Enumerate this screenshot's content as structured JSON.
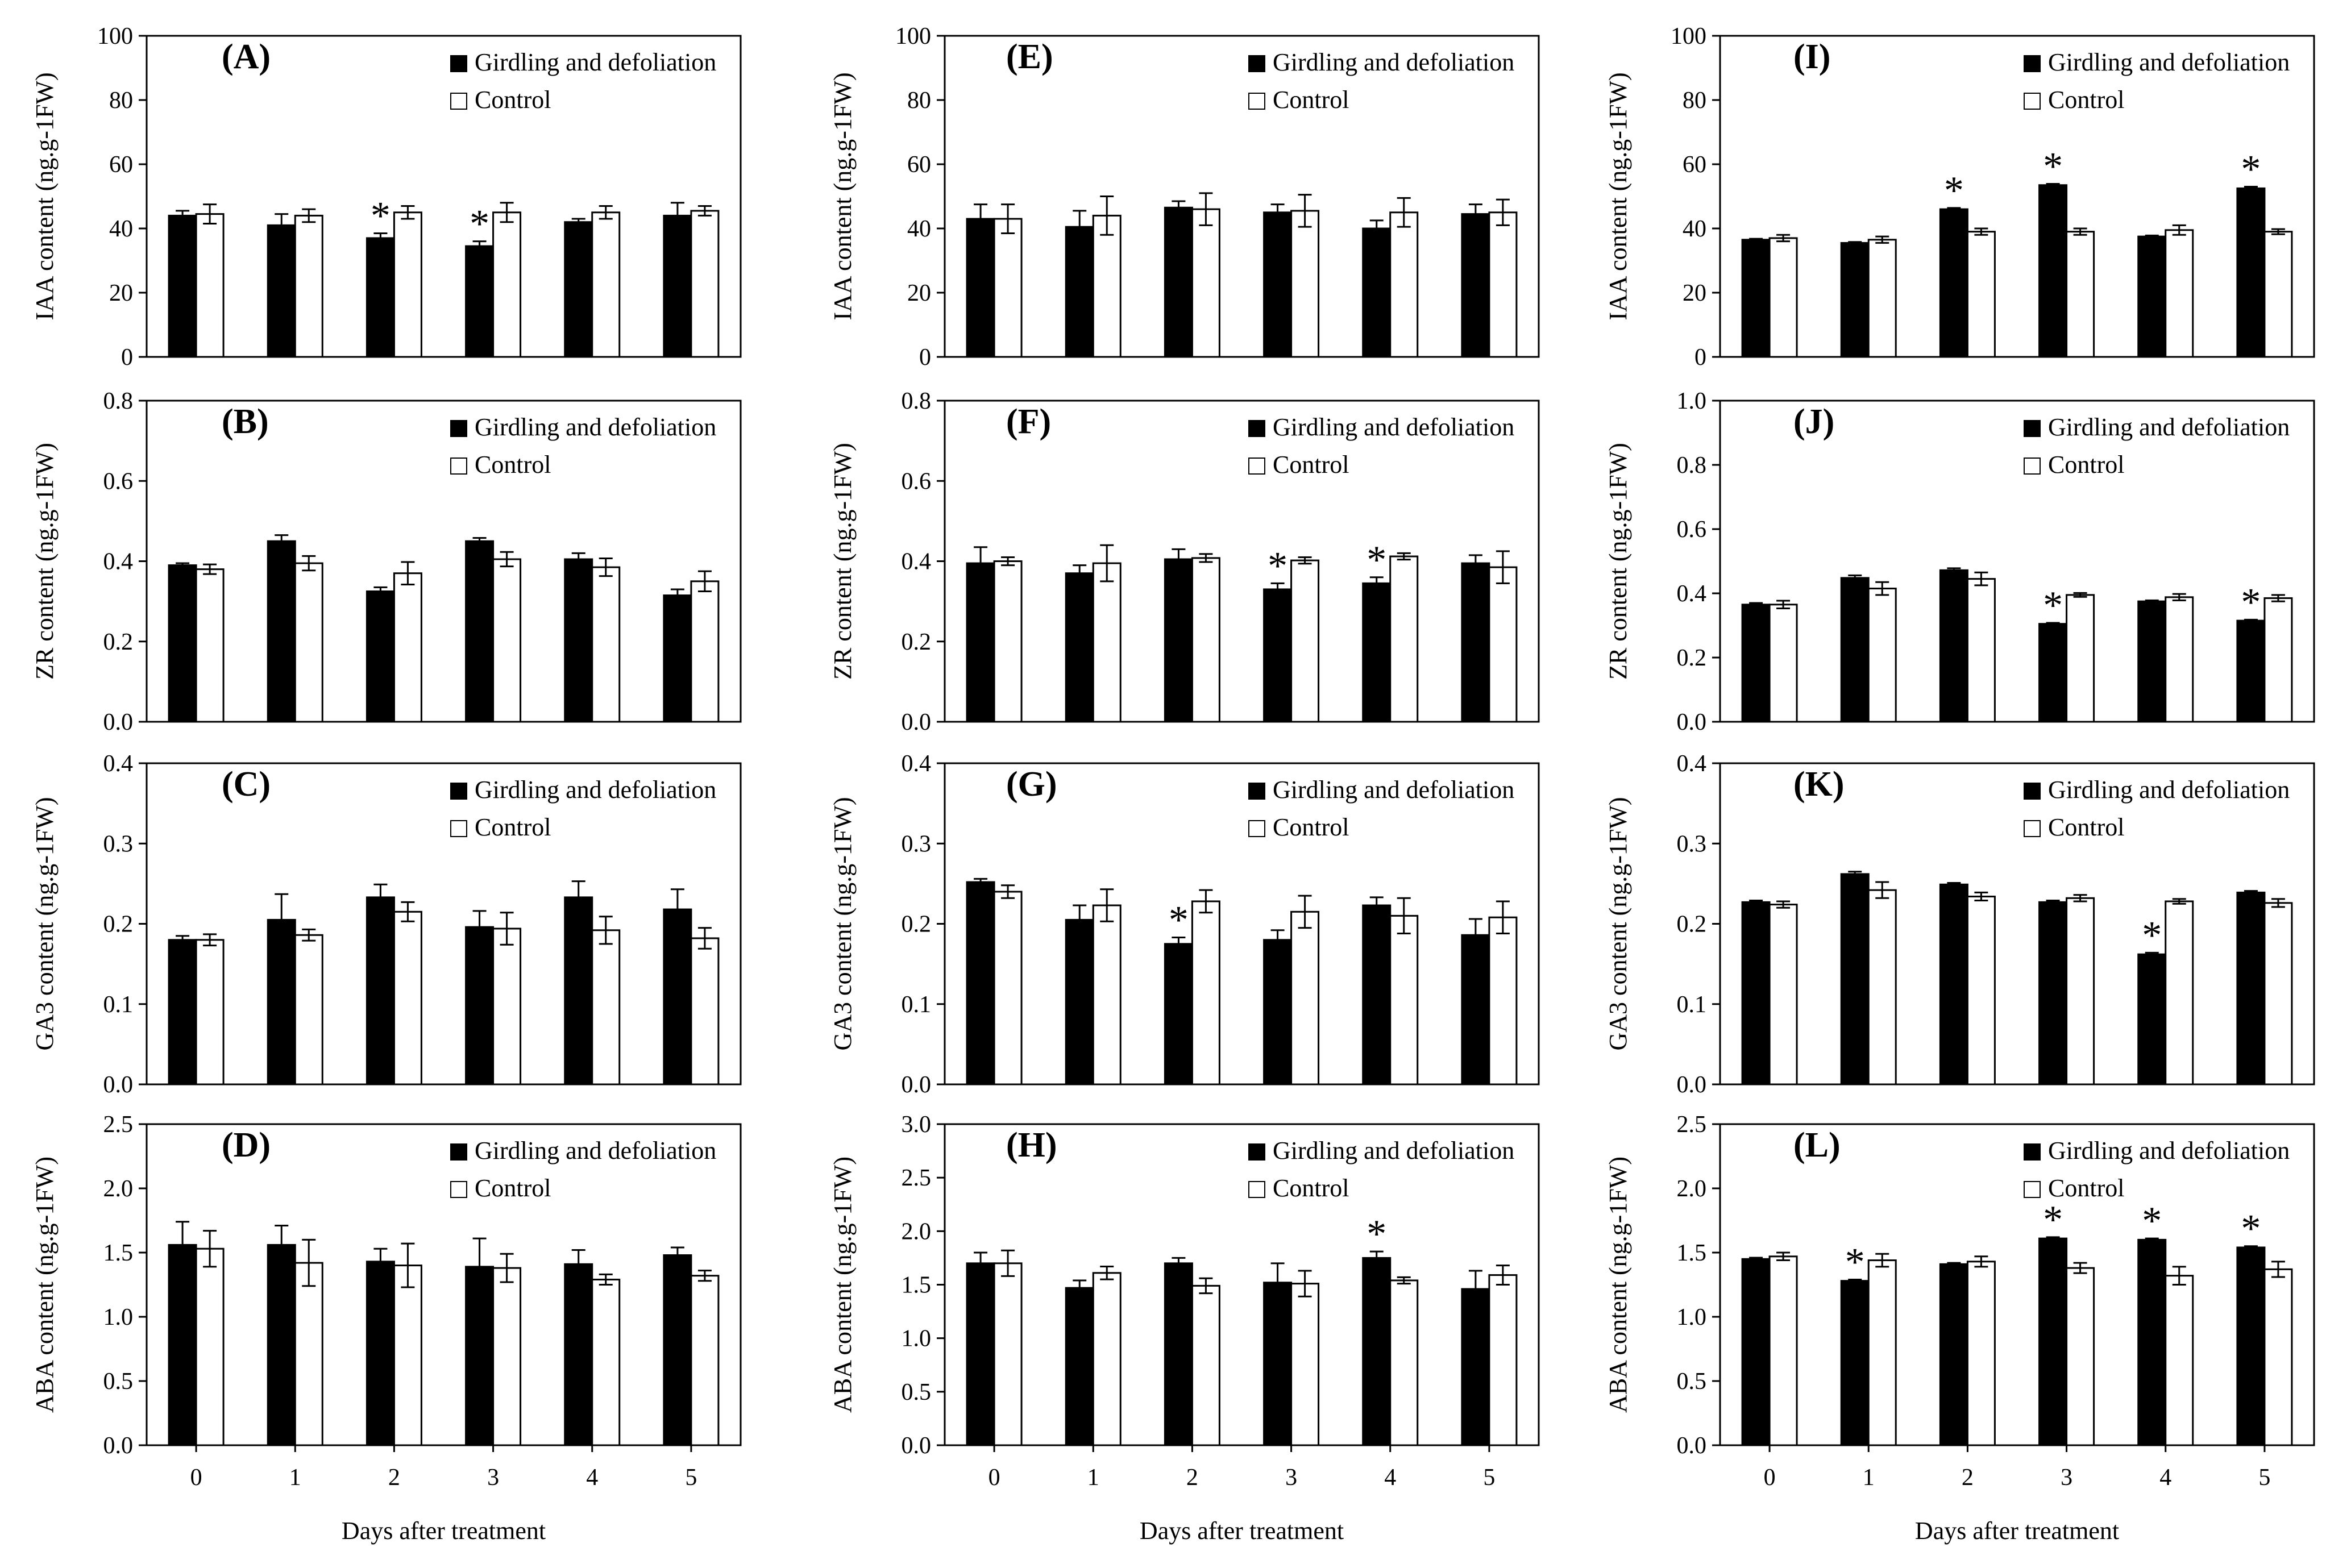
{
  "figure": {
    "xlabel": "Days after treatment",
    "legend": [
      "Girdling and defoliation",
      "Control"
    ],
    "categories": [
      "0",
      "1",
      "2",
      "3",
      "4",
      "5"
    ],
    "colors": {
      "girdling": "#000000",
      "control": "#ffffff",
      "stroke": "#000000"
    },
    "significance_marker": "*"
  },
  "chart_data": [
    {
      "panel": "(A)",
      "type": "bar",
      "ylabel": "IAA content (ng.g-1FW)",
      "ylim": [
        0,
        100
      ],
      "yticks": [
        "0",
        "20",
        "40",
        "60",
        "80",
        "100"
      ],
      "categories": [
        "0",
        "1",
        "2",
        "3",
        "4",
        "5"
      ],
      "series": [
        {
          "name": "Girdling and defoliation",
          "values": [
            44,
            41,
            37,
            34.5,
            42,
            44
          ],
          "errors": [
            1.5,
            3.5,
            1.5,
            1.5,
            1,
            4
          ]
        },
        {
          "name": "Control",
          "values": [
            44.5,
            44,
            45,
            45,
            45,
            45.5
          ],
          "errors": [
            3,
            2,
            2,
            3,
            2,
            1.5
          ]
        }
      ],
      "significant": [
        2,
        3
      ]
    },
    {
      "panel": "(B)",
      "type": "bar",
      "ylabel": "ZR content (ng.g-1FW)",
      "ylim": [
        0,
        0.8
      ],
      "yticks": [
        "0.0",
        "0.2",
        "0.4",
        "0.6",
        "0.8"
      ],
      "categories": [
        "0",
        "1",
        "2",
        "3",
        "4",
        "5"
      ],
      "series": [
        {
          "name": "Girdling and defoliation",
          "values": [
            0.39,
            0.45,
            0.325,
            0.45,
            0.405,
            0.315
          ],
          "errors": [
            0.005,
            0.015,
            0.01,
            0.008,
            0.015,
            0.015
          ]
        },
        {
          "name": "Control",
          "values": [
            0.38,
            0.395,
            0.37,
            0.405,
            0.385,
            0.35
          ],
          "errors": [
            0.012,
            0.018,
            0.028,
            0.018,
            0.022,
            0.025
          ]
        }
      ],
      "significant": []
    },
    {
      "panel": "(C)",
      "type": "bar",
      "ylabel": "GA3 content (ng.g-1FW)",
      "ylim": [
        0,
        0.4
      ],
      "yticks": [
        "0.0",
        "0.1",
        "0.2",
        "0.3",
        "0.4"
      ],
      "categories": [
        "0",
        "1",
        "2",
        "3",
        "4",
        "5"
      ],
      "series": [
        {
          "name": "Girdling and defoliation",
          "values": [
            0.18,
            0.205,
            0.233,
            0.196,
            0.233,
            0.218
          ],
          "errors": [
            0.005,
            0.032,
            0.016,
            0.02,
            0.02,
            0.025
          ]
        },
        {
          "name": "Control",
          "values": [
            0.18,
            0.186,
            0.215,
            0.194,
            0.192,
            0.182
          ],
          "errors": [
            0.007,
            0.007,
            0.012,
            0.02,
            0.017,
            0.013
          ]
        }
      ],
      "significant": []
    },
    {
      "panel": "(D)",
      "type": "bar",
      "ylabel": "ABA content (ng.g-1FW)",
      "ylim": [
        0,
        2.5
      ],
      "yticks": [
        "0.0",
        "0.5",
        "1.0",
        "1.5",
        "2.0",
        "2.5"
      ],
      "categories": [
        "0",
        "1",
        "2",
        "3",
        "4",
        "5"
      ],
      "series": [
        {
          "name": "Girdling and defoliation",
          "values": [
            1.56,
            1.56,
            1.43,
            1.39,
            1.41,
            1.48
          ],
          "errors": [
            0.18,
            0.15,
            0.1,
            0.22,
            0.11,
            0.06
          ]
        },
        {
          "name": "Control",
          "values": [
            1.53,
            1.42,
            1.4,
            1.38,
            1.29,
            1.32
          ],
          "errors": [
            0.14,
            0.18,
            0.17,
            0.11,
            0.04,
            0.04
          ]
        }
      ],
      "significant": []
    },
    {
      "panel": "(E)",
      "type": "bar",
      "ylabel": "IAA content (ng.g-1FW)",
      "ylim": [
        0,
        100
      ],
      "yticks": [
        "0",
        "20",
        "40",
        "60",
        "80",
        "100"
      ],
      "categories": [
        "0",
        "1",
        "2",
        "3",
        "4",
        "5"
      ],
      "series": [
        {
          "name": "Girdling and defoliation",
          "values": [
            43,
            40.5,
            46.5,
            45,
            40,
            44.5
          ],
          "errors": [
            4.5,
            5,
            2,
            2.5,
            2.5,
            3
          ]
        },
        {
          "name": "Control",
          "values": [
            43,
            44,
            46,
            45.5,
            45,
            45
          ],
          "errors": [
            4.5,
            6,
            5,
            5,
            4.5,
            4
          ]
        }
      ],
      "significant": []
    },
    {
      "panel": "(F)",
      "type": "bar",
      "ylabel": "ZR content (ng.g-1FW)",
      "ylim": [
        0,
        0.8
      ],
      "yticks": [
        "0.0",
        "0.2",
        "0.4",
        "0.6",
        "0.8"
      ],
      "categories": [
        "0",
        "1",
        "2",
        "3",
        "4",
        "5"
      ],
      "series": [
        {
          "name": "Girdling and defoliation",
          "values": [
            0.395,
            0.37,
            0.405,
            0.33,
            0.345,
            0.395
          ],
          "errors": [
            0.04,
            0.02,
            0.025,
            0.015,
            0.015,
            0.02
          ]
        },
        {
          "name": "Control",
          "values": [
            0.4,
            0.395,
            0.408,
            0.402,
            0.412,
            0.385
          ],
          "errors": [
            0.01,
            0.045,
            0.01,
            0.008,
            0.008,
            0.04
          ]
        }
      ],
      "significant": [
        3,
        4
      ]
    },
    {
      "panel": "(G)",
      "type": "bar",
      "ylabel": "GA3 content (ng.g-1FW)",
      "ylim": [
        0,
        0.4
      ],
      "yticks": [
        "0.0",
        "0.1",
        "0.2",
        "0.3",
        "0.4"
      ],
      "categories": [
        "0",
        "1",
        "2",
        "3",
        "4",
        "5"
      ],
      "series": [
        {
          "name": "Girdling and defoliation",
          "values": [
            0.252,
            0.205,
            0.175,
            0.18,
            0.223,
            0.186
          ],
          "errors": [
            0.004,
            0.018,
            0.008,
            0.012,
            0.01,
            0.02
          ]
        },
        {
          "name": "Control",
          "values": [
            0.24,
            0.223,
            0.228,
            0.215,
            0.21,
            0.208
          ],
          "errors": [
            0.008,
            0.02,
            0.014,
            0.02,
            0.022,
            0.02
          ]
        }
      ],
      "significant": [
        2
      ]
    },
    {
      "panel": "(H)",
      "type": "bar",
      "ylabel": "ABA content (ng.g-1FW)",
      "ylim": [
        0,
        3.0
      ],
      "yticks": [
        "0.0",
        "0.5",
        "1.0",
        "1.5",
        "2.0",
        "2.5",
        "3.0"
      ],
      "categories": [
        "0",
        "1",
        "2",
        "3",
        "4",
        "5"
      ],
      "series": [
        {
          "name": "Girdling and defoliation",
          "values": [
            1.7,
            1.47,
            1.7,
            1.52,
            1.75,
            1.46
          ],
          "errors": [
            0.1,
            0.07,
            0.05,
            0.18,
            0.06,
            0.17
          ]
        },
        {
          "name": "Control",
          "values": [
            1.7,
            1.61,
            1.49,
            1.51,
            1.54,
            1.59
          ],
          "errors": [
            0.12,
            0.06,
            0.07,
            0.12,
            0.03,
            0.09
          ]
        }
      ],
      "significant": [
        4
      ]
    },
    {
      "panel": "(I)",
      "type": "bar",
      "ylabel": "IAA content (ng.g-1FW)",
      "ylim": [
        0,
        100
      ],
      "yticks": [
        "0",
        "20",
        "40",
        "60",
        "80",
        "100"
      ],
      "categories": [
        "0",
        "1",
        "2",
        "3",
        "4",
        "5"
      ],
      "series": [
        {
          "name": "Girdling and defoliation",
          "values": [
            36.5,
            35.5,
            46,
            53.5,
            37.5,
            52.5
          ],
          "errors": [
            0.3,
            0.3,
            0.4,
            0.4,
            0.3,
            0.5
          ]
        },
        {
          "name": "Control",
          "values": [
            37,
            36.5,
            39,
            39,
            39.5,
            39
          ],
          "errors": [
            1,
            1,
            1,
            1,
            1.5,
            0.8
          ]
        }
      ],
      "significant": [
        2,
        3,
        5
      ]
    },
    {
      "panel": "(J)",
      "type": "bar",
      "ylabel": "ZR content (ng.g-1FW)",
      "ylim": [
        0,
        1.0
      ],
      "yticks": [
        "0.0",
        "0.2",
        "0.4",
        "0.6",
        "0.8",
        "1.0"
      ],
      "categories": [
        "0",
        "1",
        "2",
        "3",
        "4",
        "5"
      ],
      "series": [
        {
          "name": "Girdling and defoliation",
          "values": [
            0.365,
            0.448,
            0.472,
            0.305,
            0.375,
            0.315
          ],
          "errors": [
            0.005,
            0.008,
            0.006,
            0.003,
            0.003,
            0.003
          ]
        },
        {
          "name": "Control",
          "values": [
            0.365,
            0.415,
            0.445,
            0.395,
            0.388,
            0.385
          ],
          "errors": [
            0.012,
            0.02,
            0.02,
            0.006,
            0.01,
            0.01
          ]
        }
      ],
      "significant": [
        3,
        5
      ]
    },
    {
      "panel": "(K)",
      "type": "bar",
      "ylabel": "GA3 content (ng.g-1FW)",
      "ylim": [
        0,
        0.4
      ],
      "yticks": [
        "0.0",
        "0.1",
        "0.2",
        "0.3",
        "0.4"
      ],
      "categories": [
        "0",
        "1",
        "2",
        "3",
        "4",
        "5"
      ],
      "series": [
        {
          "name": "Girdling and defoliation",
          "values": [
            0.227,
            0.262,
            0.249,
            0.227,
            0.162,
            0.239
          ],
          "errors": [
            0.002,
            0.003,
            0.002,
            0.002,
            0.002,
            0.002
          ]
        },
        {
          "name": "Control",
          "values": [
            0.224,
            0.242,
            0.234,
            0.232,
            0.228,
            0.226
          ],
          "errors": [
            0.004,
            0.01,
            0.005,
            0.004,
            0.003,
            0.005
          ]
        }
      ],
      "significant": [
        4
      ]
    },
    {
      "panel": "(L)",
      "type": "bar",
      "ylabel": "ABA content (ng.g-1FW)",
      "ylim": [
        0,
        2.5
      ],
      "yticks": [
        "0.0",
        "0.5",
        "1.0",
        "1.5",
        "2.0",
        "2.5"
      ],
      "categories": [
        "0",
        "1",
        "2",
        "3",
        "4",
        "5"
      ],
      "series": [
        {
          "name": "Girdling and defoliation",
          "values": [
            1.45,
            1.28,
            1.41,
            1.61,
            1.6,
            1.54
          ],
          "errors": [
            0.01,
            0.01,
            0.01,
            0.01,
            0.01,
            0.01
          ]
        },
        {
          "name": "Control",
          "values": [
            1.47,
            1.44,
            1.43,
            1.38,
            1.32,
            1.37
          ],
          "errors": [
            0.03,
            0.05,
            0.04,
            0.04,
            0.07,
            0.06
          ]
        }
      ],
      "significant": [
        1,
        3,
        4,
        5
      ]
    }
  ]
}
